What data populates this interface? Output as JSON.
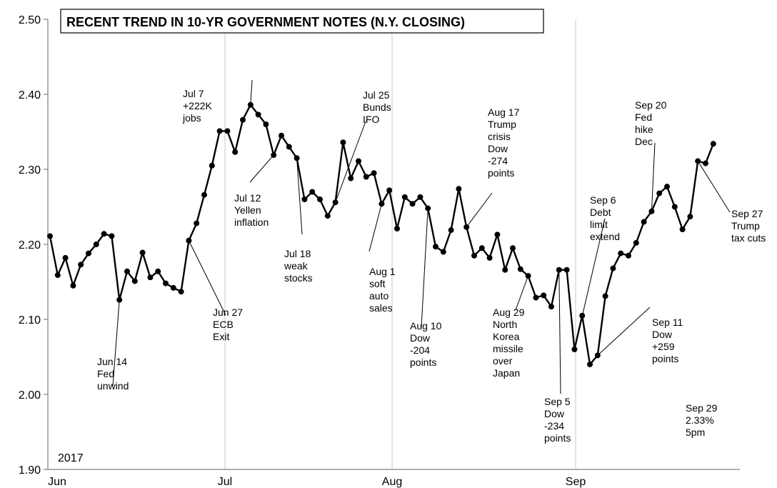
{
  "chart_data": {
    "type": "line",
    "title": "RECENT TREND IN 10-YR GOVERNMENT NOTES (N.Y. CLOSING)",
    "year_label": "2017",
    "xlabel": "",
    "ylabel": "",
    "ylim": [
      1.9,
      2.5
    ],
    "yticks": [
      "1.90",
      "2.00",
      "2.10",
      "2.20",
      "2.30",
      "2.40",
      "2.50"
    ],
    "xticks": [
      {
        "label": "Jun",
        "date": "2017-06-01"
      },
      {
        "label": "Jul",
        "date": "2017-07-01"
      },
      {
        "label": "Aug",
        "date": "2017-08-01"
      },
      {
        "label": "Sep",
        "date": "2017-09-01"
      }
    ],
    "grid": {
      "vertical": true,
      "horizontal": false
    },
    "colors": {
      "line": "#000000",
      "grid": "#c8c8c8",
      "axis": "#808080"
    },
    "series": [
      {
        "points": [
          {
            "x": "2017-06-01",
            "y": 2.211
          },
          {
            "x": "2017-06-02",
            "y": 2.159
          },
          {
            "x": "2017-06-03",
            "y": 2.182
          },
          {
            "x": "2017-06-04",
            "y": 2.145
          },
          {
            "x": "2017-06-05",
            "y": 2.173
          },
          {
            "x": "2017-06-06",
            "y": 2.188
          },
          {
            "x": "2017-06-07",
            "y": 2.2
          },
          {
            "x": "2017-06-08",
            "y": 2.214
          },
          {
            "x": "2017-06-09",
            "y": 2.211
          },
          {
            "x": "2017-06-10",
            "y": 2.126
          },
          {
            "x": "2017-06-11",
            "y": 2.164
          },
          {
            "x": "2017-06-12",
            "y": 2.151
          },
          {
            "x": "2017-06-13",
            "y": 2.189
          },
          {
            "x": "2017-06-14",
            "y": 2.156
          },
          {
            "x": "2017-06-15",
            "y": 2.164
          },
          {
            "x": "2017-06-16",
            "y": 2.148
          },
          {
            "x": "2017-06-17",
            "y": 2.142
          },
          {
            "x": "2017-06-18",
            "y": 2.137
          },
          {
            "x": "2017-06-19",
            "y": 2.205
          },
          {
            "x": "2017-06-20",
            "y": 2.228
          },
          {
            "x": "2017-06-21",
            "y": 2.266
          },
          {
            "x": "2017-06-22",
            "y": 2.305
          },
          {
            "x": "2017-06-23",
            "y": 2.351
          },
          {
            "x": "2017-06-24",
            "y": 2.351
          },
          {
            "x": "2017-06-25",
            "y": 2.323
          },
          {
            "x": "2017-06-26",
            "y": 2.366
          },
          {
            "x": "2017-06-27",
            "y": 2.386
          },
          {
            "x": "2017-06-28",
            "y": 2.373
          },
          {
            "x": "2017-06-29",
            "y": 2.36
          },
          {
            "x": "2017-06-30",
            "y": 2.319
          },
          {
            "x": "2017-07-01",
            "y": 2.345
          },
          {
            "x": "2017-07-02",
            "y": 2.33
          },
          {
            "x": "2017-07-03",
            "y": 2.315
          },
          {
            "x": "2017-07-04",
            "y": 2.26
          },
          {
            "x": "2017-07-05",
            "y": 2.27
          },
          {
            "x": "2017-07-06",
            "y": 2.26
          },
          {
            "x": "2017-07-07",
            "y": 2.238
          },
          {
            "x": "2017-07-08",
            "y": 2.256
          },
          {
            "x": "2017-07-09",
            "y": 2.336
          },
          {
            "x": "2017-07-10",
            "y": 2.288
          },
          {
            "x": "2017-07-11",
            "y": 2.311
          },
          {
            "x": "2017-07-12",
            "y": 2.29
          },
          {
            "x": "2017-07-13",
            "y": 2.295
          },
          {
            "x": "2017-07-14",
            "y": 2.254
          },
          {
            "x": "2017-07-15",
            "y": 2.272
          },
          {
            "x": "2017-07-16",
            "y": 2.221
          },
          {
            "x": "2017-07-17",
            "y": 2.263
          },
          {
            "x": "2017-07-18",
            "y": 2.254
          },
          {
            "x": "2017-07-19",
            "y": 2.263
          },
          {
            "x": "2017-07-20",
            "y": 2.248
          },
          {
            "x": "2017-07-21",
            "y": 2.197
          },
          {
            "x": "2017-07-22",
            "y": 2.19
          },
          {
            "x": "2017-07-23",
            "y": 2.219
          },
          {
            "x": "2017-07-24",
            "y": 2.274
          },
          {
            "x": "2017-07-25",
            "y": 2.223
          },
          {
            "x": "2017-07-26",
            "y": 2.185
          },
          {
            "x": "2017-07-27",
            "y": 2.195
          },
          {
            "x": "2017-07-28",
            "y": 2.182
          },
          {
            "x": "2017-07-29",
            "y": 2.213
          },
          {
            "x": "2017-07-30",
            "y": 2.166
          },
          {
            "x": "2017-07-31",
            "y": 2.195
          },
          {
            "x": "2017-08-01",
            "y": 2.167
          },
          {
            "x": "2017-08-02",
            "y": 2.158
          },
          {
            "x": "2017-08-03",
            "y": 2.129
          },
          {
            "x": "2017-08-04",
            "y": 2.132
          },
          {
            "x": "2017-08-05",
            "y": 2.117
          },
          {
            "x": "2017-08-06",
            "y": 2.166
          },
          {
            "x": "2017-08-07",
            "y": 2.166
          },
          {
            "x": "2017-08-08",
            "y": 2.06
          },
          {
            "x": "2017-08-09",
            "y": 2.105
          },
          {
            "x": "2017-08-10",
            "y": 2.04
          },
          {
            "x": "2017-08-11",
            "y": 2.052
          },
          {
            "x": "2017-08-12",
            "y": 2.131
          },
          {
            "x": "2017-08-13",
            "y": 2.168
          },
          {
            "x": "2017-08-14",
            "y": 2.188
          },
          {
            "x": "2017-08-15",
            "y": 2.185
          },
          {
            "x": "2017-08-16",
            "y": 2.202
          },
          {
            "x": "2017-08-17",
            "y": 2.23
          },
          {
            "x": "2017-08-18",
            "y": 2.244
          },
          {
            "x": "2017-08-19",
            "y": 2.268
          },
          {
            "x": "2017-08-20",
            "y": 2.277
          },
          {
            "x": "2017-08-21",
            "y": 2.25
          },
          {
            "x": "2017-08-22",
            "y": 2.22
          },
          {
            "x": "2017-08-23",
            "y": 2.237
          },
          {
            "x": "2017-08-24",
            "y": 2.311
          },
          {
            "x": "2017-08-25",
            "y": 2.308
          },
          {
            "x": "2017-08-26",
            "y": 2.334
          }
        ]
      }
    ],
    "annotations": [
      {
        "lines": [
          "Jun 14",
          "Fed",
          "unwind"
        ],
        "point_index": 9
      },
      {
        "lines": [
          "Jun 27",
          "ECB",
          "Exit"
        ],
        "point_index": 18
      },
      {
        "lines": [
          "Jul 7",
          "+222K",
          "jobs"
        ],
        "point_index": 26
      },
      {
        "lines": [
          "Jul 12",
          "Yellen",
          "inflation"
        ],
        "point_index": 29
      },
      {
        "lines": [
          "Jul 18",
          "weak",
          "stocks"
        ],
        "point_index": 32
      },
      {
        "lines": [
          "Jul 25",
          "Bunds",
          "IFO"
        ],
        "point_index": 37
      },
      {
        "lines": [
          "Aug 1",
          "soft",
          "auto",
          "sales"
        ],
        "point_index": 43
      },
      {
        "lines": [
          "Aug 10",
          "Dow",
          "-204",
          "points"
        ],
        "point_index": 49
      },
      {
        "lines": [
          "Aug 17",
          "Trump",
          "crisis",
          "Dow",
          "-274",
          "points"
        ],
        "point_index": 54
      },
      {
        "lines": [
          "Aug 29",
          "North",
          "Korea",
          "missile",
          "over",
          "Japan"
        ],
        "point_index": 62
      },
      {
        "lines": [
          "Sep 5",
          "Dow",
          "-234",
          "points"
        ],
        "point_index": 66
      },
      {
        "lines": [
          "Sep 6",
          "Debt",
          "limit",
          "extend"
        ],
        "point_index": 68
      },
      {
        "lines": [
          "Sep 11",
          "Dow",
          "+259",
          "points"
        ],
        "point_index": 71
      },
      {
        "lines": [
          "Sep 20",
          "Fed",
          "hike",
          "Dec"
        ],
        "point_index": 78
      },
      {
        "lines": [
          "Sep 27",
          "Trump",
          "tax cuts"
        ],
        "point_index": 84
      },
      {
        "lines": [
          "Sep 29",
          "2.33%",
          "5pm"
        ],
        "point_index": null
      }
    ]
  }
}
